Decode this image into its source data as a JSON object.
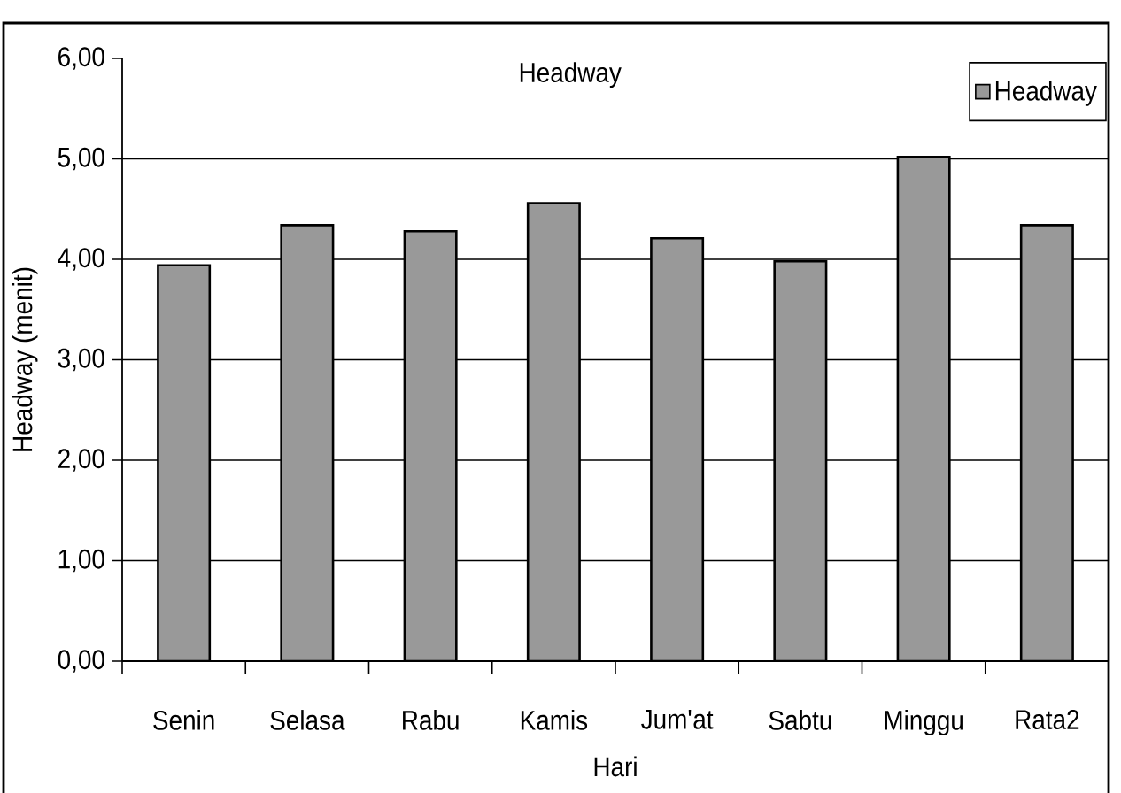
{
  "chart_data": {
    "type": "bar",
    "title": "Headway",
    "xlabel": "Hari",
    "ylabel": "Headway (menit)",
    "categories": [
      "Senin",
      "Selasa",
      "Rabu",
      "Kamis",
      "Jum'at",
      "Sabtu",
      "Minggu",
      "Rata2"
    ],
    "series": [
      {
        "name": "Headway",
        "color": "#999999",
        "values": [
          3.94,
          4.34,
          4.28,
          4.56,
          4.21,
          3.98,
          5.02,
          4.34
        ]
      }
    ],
    "ylim": [
      0,
      6
    ],
    "yticks": [
      {
        "value": 0,
        "label": "0,00"
      },
      {
        "value": 1,
        "label": "1,00"
      },
      {
        "value": 2,
        "label": "2,00"
      },
      {
        "value": 3,
        "label": "3,00"
      },
      {
        "value": 4,
        "label": "4,00"
      },
      {
        "value": 5,
        "label": "5,00"
      },
      {
        "value": 6,
        "label": "6,00"
      }
    ],
    "grid": "y",
    "legend": "top right"
  }
}
